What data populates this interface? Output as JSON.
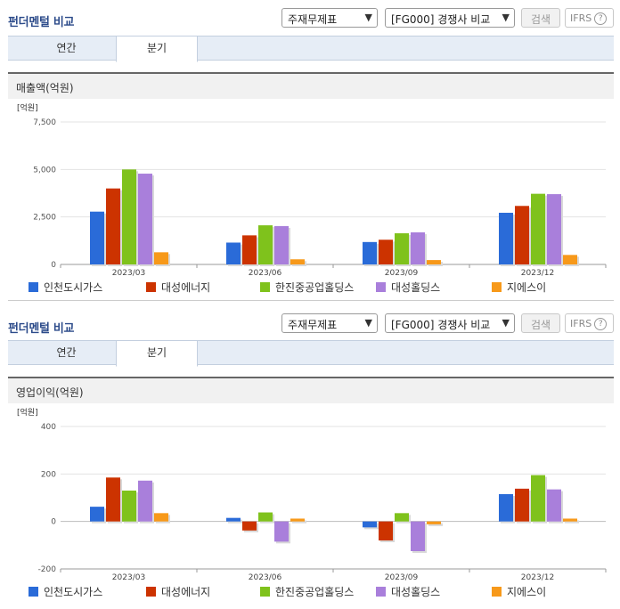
{
  "sections": [
    {
      "title": "펀더멘털 비교",
      "select1": "주재무제표",
      "select2": "[FG000] 경쟁사 비교",
      "search_label": "검색",
      "ifrs_label": "IFRS",
      "ifrs_help": "?",
      "tabs": [
        "연간",
        "분기"
      ],
      "active_tab": 1,
      "chart_title": "매출액(억원)"
    },
    {
      "title": "펀더멘털 비교",
      "select1": "주재무제표",
      "select2": "[FG000] 경쟁사 비교",
      "search_label": "검색",
      "ifrs_label": "IFRS",
      "ifrs_help": "?",
      "tabs": [
        "연간",
        "분기"
      ],
      "active_tab": 1,
      "chart_title": "영업이익(억원)"
    }
  ],
  "icons": {
    "dropdown": "chevron-down-icon",
    "help": "question-circle-icon"
  },
  "chart_data": [
    {
      "type": "bar",
      "title": "매출액(억원)",
      "ylabel": "[억원]",
      "categories": [
        "2023/03",
        "2023/06",
        "2023/09",
        "2023/12"
      ],
      "yticks": [
        0,
        2500,
        5000,
        7500
      ],
      "ytick_labels": [
        "0",
        "2,500",
        "5,000",
        "7,500"
      ],
      "ylim": [
        0,
        7500
      ],
      "grid": true,
      "legend_position": "bottom",
      "series": [
        {
          "name": "인천도시가스",
          "color": "#2a6bd8",
          "values": [
            2780,
            1150,
            1180,
            2720
          ]
        },
        {
          "name": "대성에너지",
          "color": "#cc3300",
          "values": [
            4000,
            1530,
            1300,
            3080
          ]
        },
        {
          "name": "한진중공업홀딩스",
          "color": "#7fc21c",
          "values": [
            5000,
            2060,
            1640,
            3720
          ]
        },
        {
          "name": "대성홀딩스",
          "color": "#a97fdb",
          "values": [
            4780,
            2020,
            1690,
            3700
          ]
        },
        {
          "name": "지에스이",
          "color": "#f7991a",
          "values": [
            640,
            270,
            230,
            500
          ]
        }
      ]
    },
    {
      "type": "bar",
      "title": "영업이익(억원)",
      "ylabel": "[억원]",
      "categories": [
        "2023/03",
        "2023/06",
        "2023/09",
        "2023/12"
      ],
      "yticks": [
        -200,
        0,
        200,
        400
      ],
      "ytick_labels": [
        "-200",
        "0",
        "200",
        "400"
      ],
      "ylim": [
        -200,
        400
      ],
      "grid": true,
      "legend_position": "bottom",
      "series": [
        {
          "name": "인천도시가스",
          "color": "#2a6bd8",
          "values": [
            62,
            15,
            -25,
            115
          ]
        },
        {
          "name": "대성에너지",
          "color": "#cc3300",
          "values": [
            185,
            -38,
            -80,
            138
          ]
        },
        {
          "name": "한진중공업홀딩스",
          "color": "#7fc21c",
          "values": [
            130,
            38,
            35,
            195
          ]
        },
        {
          "name": "대성홀딩스",
          "color": "#a97fdb",
          "values": [
            172,
            -85,
            -125,
            135
          ]
        },
        {
          "name": "지에스이",
          "color": "#f7991a",
          "values": [
            35,
            12,
            -12,
            12
          ]
        }
      ]
    }
  ]
}
